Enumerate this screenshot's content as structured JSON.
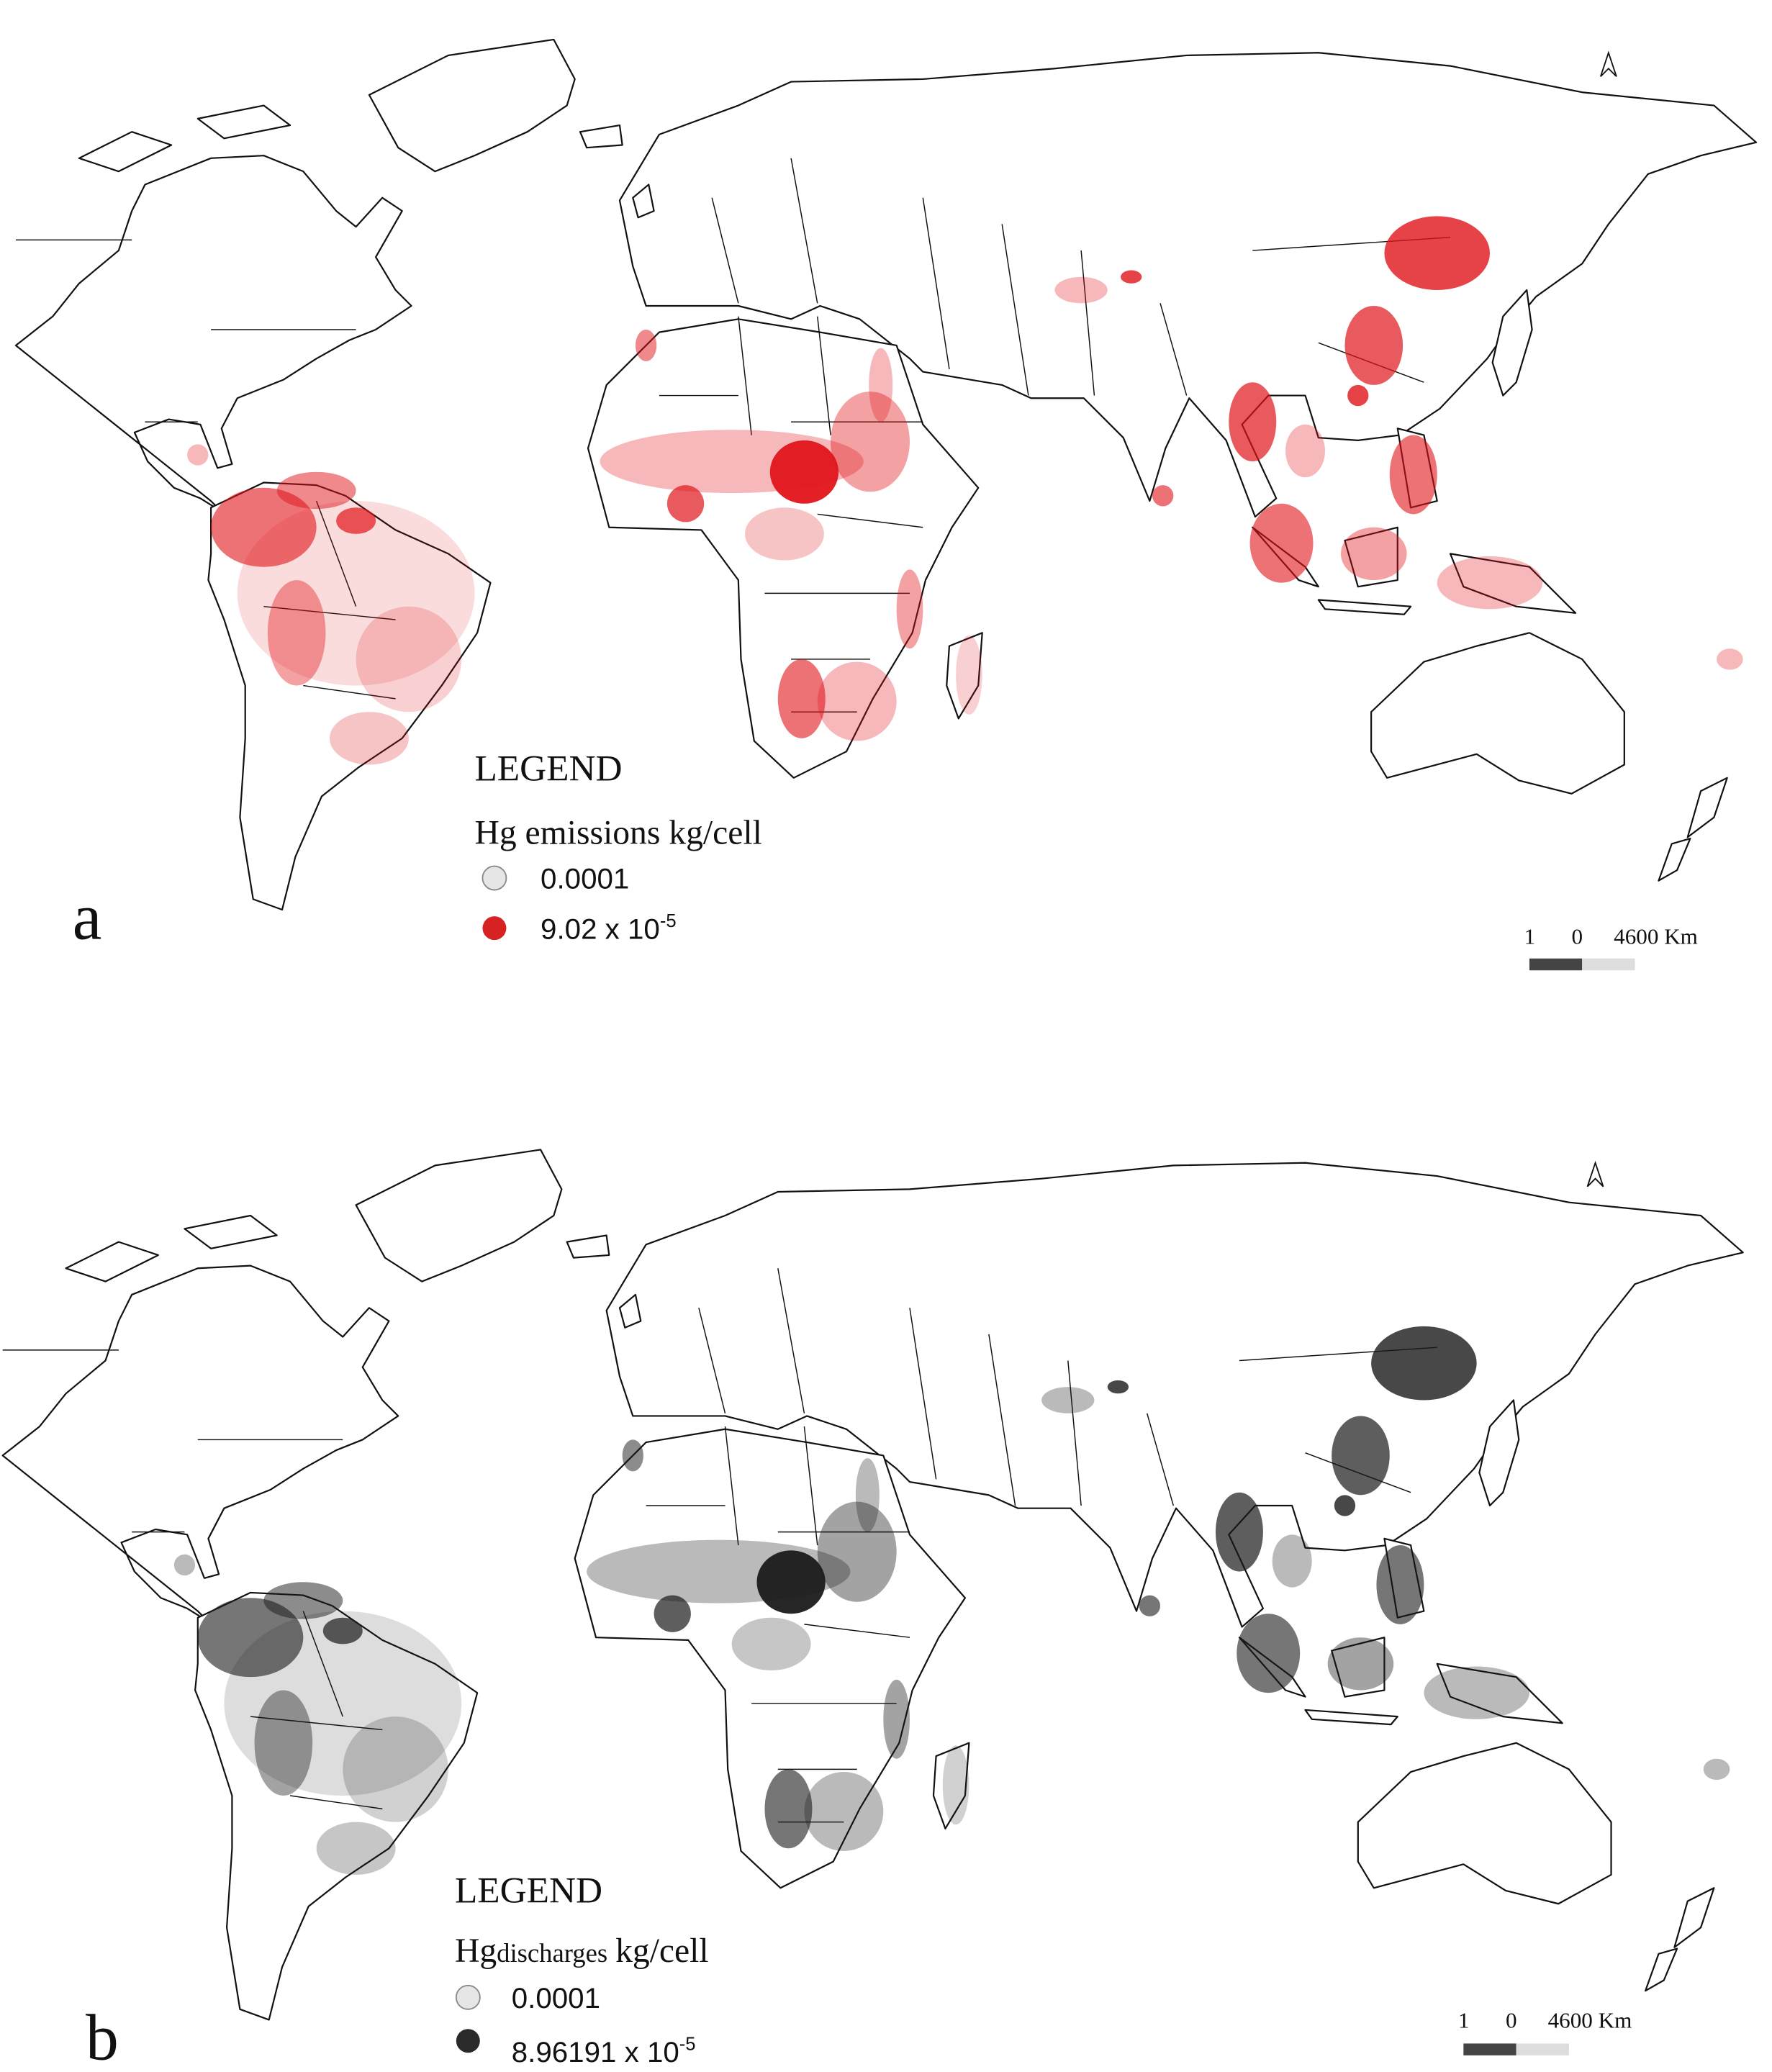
{
  "panels": [
    {
      "label": "a",
      "legend_title": "LEGEND",
      "legend_heading": "Hg emissions kg/cell",
      "legend_items": [
        {
          "label": "0.0001"
        },
        {
          "label": "9.02 x 10",
          "exponent": "-5"
        }
      ],
      "scale_bar": [
        "1",
        "0",
        "4600 Km"
      ]
    },
    {
      "label": "b",
      "legend_title": "LEGEND",
      "legend_heading": {
        "symbol": "Hg",
        "subscript": "discharges",
        "unit": "kg/cell"
      },
      "legend_items": [
        {
          "label": "0.0001"
        },
        {
          "label": "8.96191 x 10",
          "exponent": "-5"
        }
      ],
      "scale_bar": [
        "1",
        "0",
        "4600 Km"
      ]
    }
  ]
}
